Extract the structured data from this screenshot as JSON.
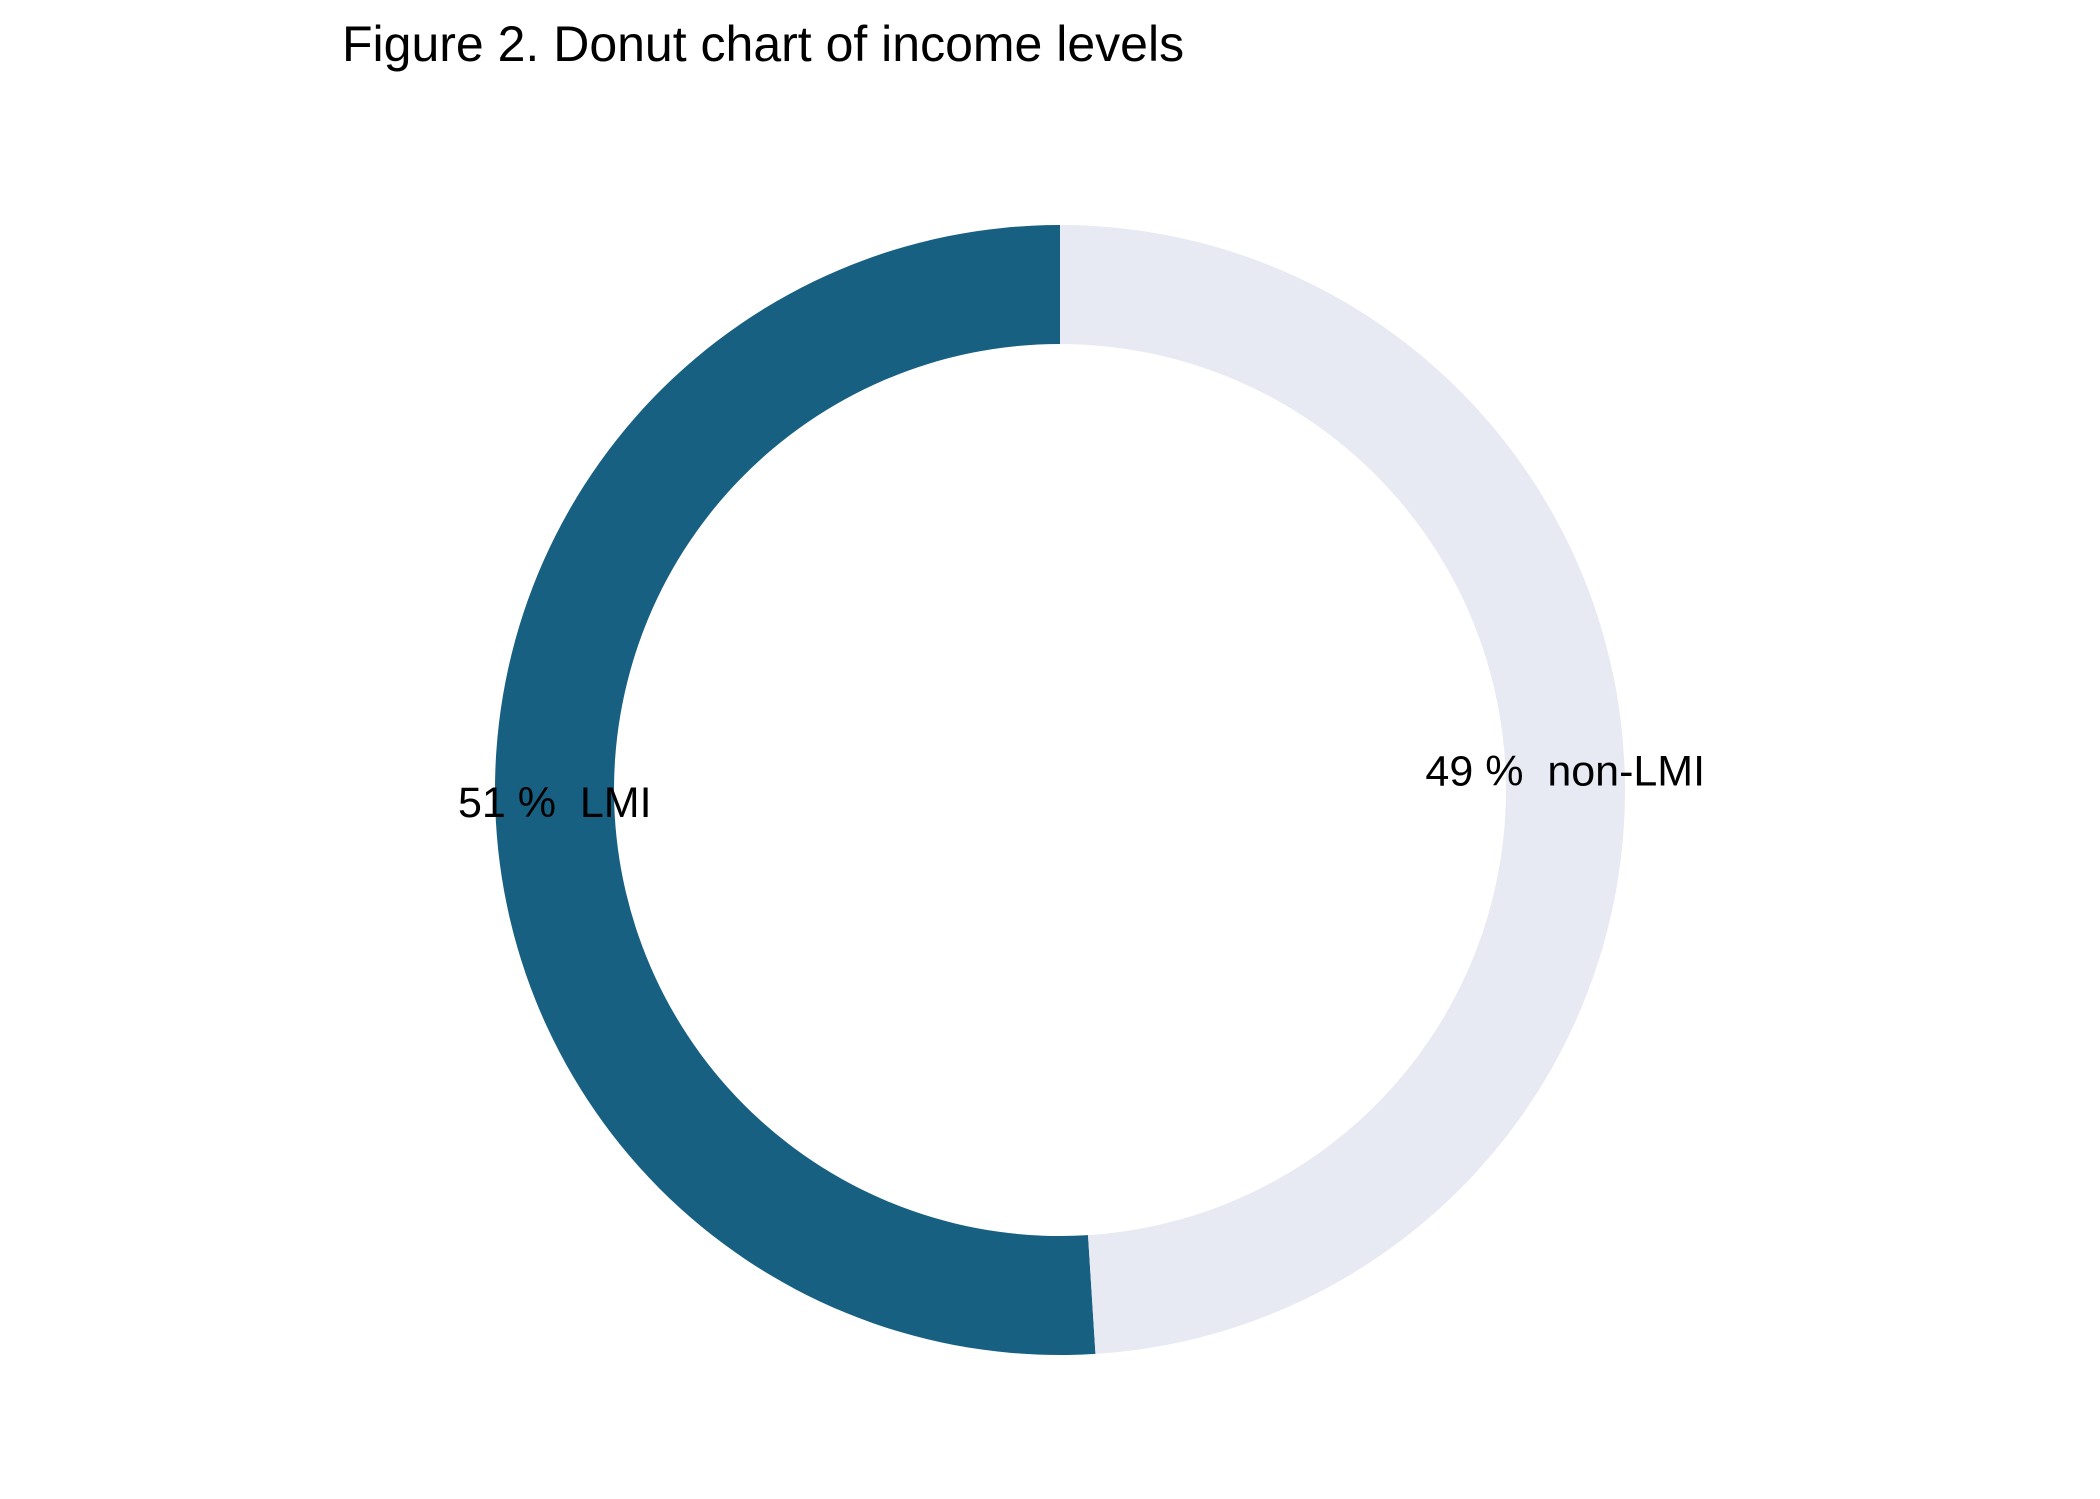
{
  "chart_data": {
    "type": "pie",
    "variant": "donut",
    "title": "Figure 2. Donut chart of income levels",
    "categories": [
      "LMI",
      "non-LMI"
    ],
    "values": [
      51,
      49
    ],
    "labels": [
      "51 %  LMI",
      "49 %  non-LMI"
    ],
    "unit": "%",
    "colors": [
      "#176082",
      "#e7e9f3"
    ],
    "start_angle": "12 o'clock",
    "direction": "counterclockwise",
    "legend": "none"
  }
}
